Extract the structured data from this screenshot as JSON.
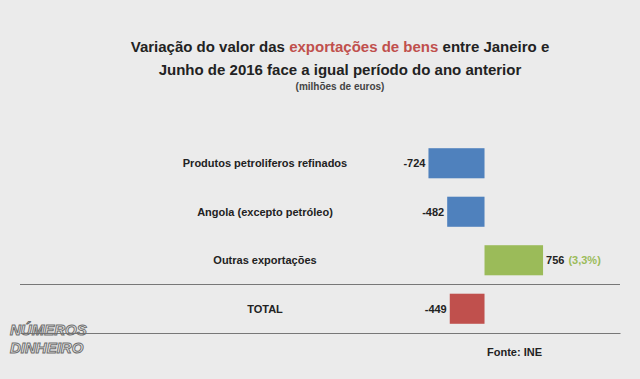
{
  "chart_data": {
    "type": "bar",
    "orientation": "horizontal",
    "title": [
      "Variação do valor das exportações de bens entre Janeiro e",
      "Junho de 2016 face a igual período do ano anterior"
    ],
    "title_highlight": "exportações de bens",
    "subtitle": "(milhões de euros)",
    "categories": [
      "Produtos petroliferos refinados",
      "Angola (excepto petróleo)",
      "Outras exportações",
      "TOTAL"
    ],
    "values": [
      -724,
      -482,
      756,
      -449
    ],
    "colors": [
      "#4f81bd",
      "#4f81bd",
      "#9bbb59",
      "#c0504d"
    ],
    "xlim": [
      -6000,
      1750
    ],
    "xticks": [],
    "tick_labels": false,
    "grid": false,
    "data_labels": true,
    "annotations": [
      {
        "text": "(3,3%)",
        "category": "Outras exportações",
        "color": "#9bbb59"
      }
    ],
    "source": "Fonte: INE",
    "watermark": [
      "NÚMEROS",
      "DINHEIRO"
    ]
  }
}
